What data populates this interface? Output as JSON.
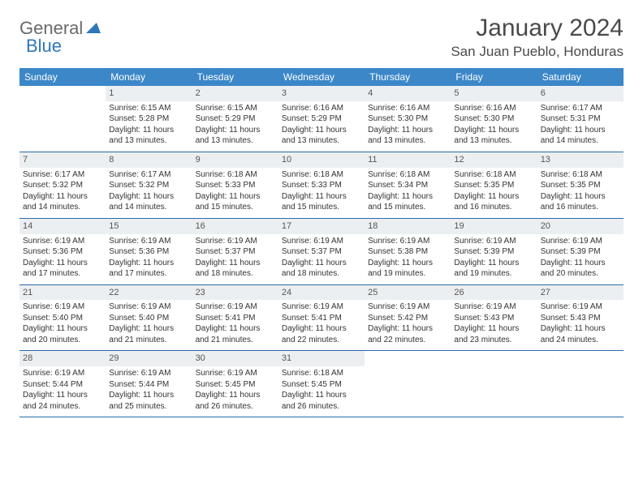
{
  "logo": {
    "word1": "General",
    "word2": "Blue"
  },
  "title": "January 2024",
  "location": "San Juan Pueblo, Honduras",
  "colors": {
    "header_bg": "#3b87c8",
    "header_text": "#ffffff",
    "daynum_bg": "#eceff1",
    "row_border": "#2a6aa8",
    "logo_gray": "#6a6a6a",
    "logo_blue": "#2f77bb"
  },
  "day_headers": [
    "Sunday",
    "Monday",
    "Tuesday",
    "Wednesday",
    "Thursday",
    "Friday",
    "Saturday"
  ],
  "weeks": [
    [
      {
        "n": "",
        "sr": "",
        "ss": "",
        "d1": "",
        "d2": "",
        "empty": true
      },
      {
        "n": "1",
        "sr": "Sunrise: 6:15 AM",
        "ss": "Sunset: 5:28 PM",
        "d1": "Daylight: 11 hours",
        "d2": "and 13 minutes."
      },
      {
        "n": "2",
        "sr": "Sunrise: 6:15 AM",
        "ss": "Sunset: 5:29 PM",
        "d1": "Daylight: 11 hours",
        "d2": "and 13 minutes."
      },
      {
        "n": "3",
        "sr": "Sunrise: 6:16 AM",
        "ss": "Sunset: 5:29 PM",
        "d1": "Daylight: 11 hours",
        "d2": "and 13 minutes."
      },
      {
        "n": "4",
        "sr": "Sunrise: 6:16 AM",
        "ss": "Sunset: 5:30 PM",
        "d1": "Daylight: 11 hours",
        "d2": "and 13 minutes."
      },
      {
        "n": "5",
        "sr": "Sunrise: 6:16 AM",
        "ss": "Sunset: 5:30 PM",
        "d1": "Daylight: 11 hours",
        "d2": "and 13 minutes."
      },
      {
        "n": "6",
        "sr": "Sunrise: 6:17 AM",
        "ss": "Sunset: 5:31 PM",
        "d1": "Daylight: 11 hours",
        "d2": "and 14 minutes."
      }
    ],
    [
      {
        "n": "7",
        "sr": "Sunrise: 6:17 AM",
        "ss": "Sunset: 5:32 PM",
        "d1": "Daylight: 11 hours",
        "d2": "and 14 minutes."
      },
      {
        "n": "8",
        "sr": "Sunrise: 6:17 AM",
        "ss": "Sunset: 5:32 PM",
        "d1": "Daylight: 11 hours",
        "d2": "and 14 minutes."
      },
      {
        "n": "9",
        "sr": "Sunrise: 6:18 AM",
        "ss": "Sunset: 5:33 PM",
        "d1": "Daylight: 11 hours",
        "d2": "and 15 minutes."
      },
      {
        "n": "10",
        "sr": "Sunrise: 6:18 AM",
        "ss": "Sunset: 5:33 PM",
        "d1": "Daylight: 11 hours",
        "d2": "and 15 minutes."
      },
      {
        "n": "11",
        "sr": "Sunrise: 6:18 AM",
        "ss": "Sunset: 5:34 PM",
        "d1": "Daylight: 11 hours",
        "d2": "and 15 minutes."
      },
      {
        "n": "12",
        "sr": "Sunrise: 6:18 AM",
        "ss": "Sunset: 5:35 PM",
        "d1": "Daylight: 11 hours",
        "d2": "and 16 minutes."
      },
      {
        "n": "13",
        "sr": "Sunrise: 6:18 AM",
        "ss": "Sunset: 5:35 PM",
        "d1": "Daylight: 11 hours",
        "d2": "and 16 minutes."
      }
    ],
    [
      {
        "n": "14",
        "sr": "Sunrise: 6:19 AM",
        "ss": "Sunset: 5:36 PM",
        "d1": "Daylight: 11 hours",
        "d2": "and 17 minutes."
      },
      {
        "n": "15",
        "sr": "Sunrise: 6:19 AM",
        "ss": "Sunset: 5:36 PM",
        "d1": "Daylight: 11 hours",
        "d2": "and 17 minutes."
      },
      {
        "n": "16",
        "sr": "Sunrise: 6:19 AM",
        "ss": "Sunset: 5:37 PM",
        "d1": "Daylight: 11 hours",
        "d2": "and 18 minutes."
      },
      {
        "n": "17",
        "sr": "Sunrise: 6:19 AM",
        "ss": "Sunset: 5:37 PM",
        "d1": "Daylight: 11 hours",
        "d2": "and 18 minutes."
      },
      {
        "n": "18",
        "sr": "Sunrise: 6:19 AM",
        "ss": "Sunset: 5:38 PM",
        "d1": "Daylight: 11 hours",
        "d2": "and 19 minutes."
      },
      {
        "n": "19",
        "sr": "Sunrise: 6:19 AM",
        "ss": "Sunset: 5:39 PM",
        "d1": "Daylight: 11 hours",
        "d2": "and 19 minutes."
      },
      {
        "n": "20",
        "sr": "Sunrise: 6:19 AM",
        "ss": "Sunset: 5:39 PM",
        "d1": "Daylight: 11 hours",
        "d2": "and 20 minutes."
      }
    ],
    [
      {
        "n": "21",
        "sr": "Sunrise: 6:19 AM",
        "ss": "Sunset: 5:40 PM",
        "d1": "Daylight: 11 hours",
        "d2": "and 20 minutes."
      },
      {
        "n": "22",
        "sr": "Sunrise: 6:19 AM",
        "ss": "Sunset: 5:40 PM",
        "d1": "Daylight: 11 hours",
        "d2": "and 21 minutes."
      },
      {
        "n": "23",
        "sr": "Sunrise: 6:19 AM",
        "ss": "Sunset: 5:41 PM",
        "d1": "Daylight: 11 hours",
        "d2": "and 21 minutes."
      },
      {
        "n": "24",
        "sr": "Sunrise: 6:19 AM",
        "ss": "Sunset: 5:41 PM",
        "d1": "Daylight: 11 hours",
        "d2": "and 22 minutes."
      },
      {
        "n": "25",
        "sr": "Sunrise: 6:19 AM",
        "ss": "Sunset: 5:42 PM",
        "d1": "Daylight: 11 hours",
        "d2": "and 22 minutes."
      },
      {
        "n": "26",
        "sr": "Sunrise: 6:19 AM",
        "ss": "Sunset: 5:43 PM",
        "d1": "Daylight: 11 hours",
        "d2": "and 23 minutes."
      },
      {
        "n": "27",
        "sr": "Sunrise: 6:19 AM",
        "ss": "Sunset: 5:43 PM",
        "d1": "Daylight: 11 hours",
        "d2": "and 24 minutes."
      }
    ],
    [
      {
        "n": "28",
        "sr": "Sunrise: 6:19 AM",
        "ss": "Sunset: 5:44 PM",
        "d1": "Daylight: 11 hours",
        "d2": "and 24 minutes."
      },
      {
        "n": "29",
        "sr": "Sunrise: 6:19 AM",
        "ss": "Sunset: 5:44 PM",
        "d1": "Daylight: 11 hours",
        "d2": "and 25 minutes."
      },
      {
        "n": "30",
        "sr": "Sunrise: 6:19 AM",
        "ss": "Sunset: 5:45 PM",
        "d1": "Daylight: 11 hours",
        "d2": "and 26 minutes."
      },
      {
        "n": "31",
        "sr": "Sunrise: 6:18 AM",
        "ss": "Sunset: 5:45 PM",
        "d1": "Daylight: 11 hours",
        "d2": "and 26 minutes."
      },
      {
        "n": "",
        "sr": "",
        "ss": "",
        "d1": "",
        "d2": "",
        "empty": true
      },
      {
        "n": "",
        "sr": "",
        "ss": "",
        "d1": "",
        "d2": "",
        "empty": true
      },
      {
        "n": "",
        "sr": "",
        "ss": "",
        "d1": "",
        "d2": "",
        "empty": true
      }
    ]
  ]
}
